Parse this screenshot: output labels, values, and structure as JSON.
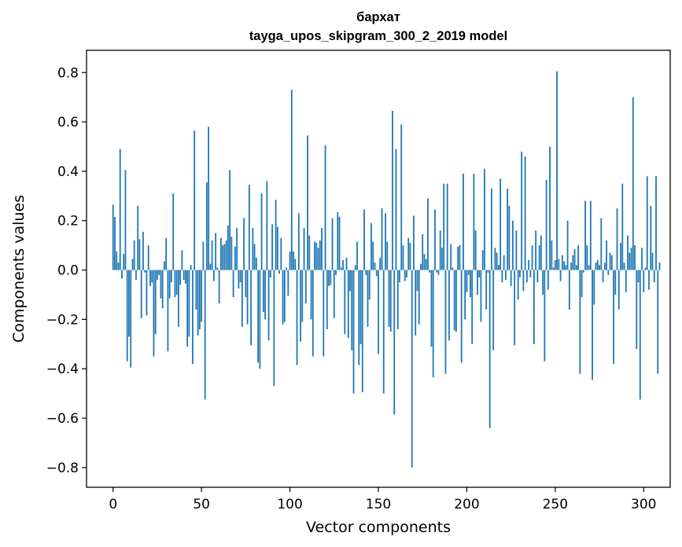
{
  "chart_data": {
    "type": "bar",
    "title": "бархат",
    "subtitle": "tayga_upos_skipgram_300_2_2019 model",
    "xlabel": "Vector components",
    "ylabel": "Components values",
    "xlim": [
      -15,
      315
    ],
    "ylim": [
      -0.88,
      0.89
    ],
    "xticks": [
      0,
      50,
      100,
      150,
      200,
      250,
      300
    ],
    "xtick_labels": [
      "0",
      "50",
      "100",
      "150",
      "200",
      "250",
      "300"
    ],
    "yticks": [
      0.8,
      0.6,
      0.4,
      0.2,
      0.0,
      -0.2,
      -0.4,
      -0.6,
      -0.8
    ],
    "ytick_labels": [
      "0.8",
      "0.6",
      "0.4",
      "0.2",
      "0.0",
      "−0.2",
      "−0.4",
      "−0.6",
      "−0.8"
    ],
    "bar_color": "#1f77b4",
    "grid": false,
    "values": [
      0.265,
      0.215,
      0.075,
      0.03,
      0.49,
      -0.035,
      0.065,
      0.405,
      -0.37,
      -0.27,
      -0.395,
      0.045,
      0.12,
      -0.04,
      0.26,
      0.125,
      -0.195,
      0.155,
      -0.01,
      -0.185,
      0.1,
      -0.065,
      -0.05,
      -0.35,
      -0.26,
      -0.04,
      -0.02,
      -0.115,
      -0.155,
      0.035,
      0.13,
      -0.33,
      -0.115,
      -0.05,
      0.31,
      -0.11,
      -0.1,
      -0.23,
      -0.06,
      0.08,
      -0.04,
      -0.055,
      -0.31,
      -0.27,
      0.02,
      -0.38,
      0.565,
      -0.16,
      -0.265,
      -0.24,
      -0.21,
      0.115,
      -0.525,
      0.355,
      0.58,
      0.025,
      0.12,
      -0.045,
      0.15,
      0.01,
      -0.135,
      0.13,
      0.1,
      0.105,
      0.12,
      0.18,
      0.405,
      0.135,
      -0.11,
      0.095,
      0.17,
      -0.075,
      -0.05,
      -0.23,
      0.21,
      -0.11,
      -0.22,
      0.345,
      -0.305,
      0.17,
      0.105,
      0.05,
      -0.375,
      -0.4,
      0.31,
      -0.17,
      -0.2,
      0.36,
      -0.285,
      -0.03,
      0.185,
      -0.47,
      0.285,
      0.175,
      -0.015,
      0.13,
      -0.22,
      -0.21,
      0.01,
      -0.105,
      0.075,
      0.73,
      0.075,
      0.045,
      -0.385,
      0.23,
      -0.29,
      -0.21,
      0.17,
      -0.135,
      0.545,
      0.14,
      -0.2,
      -0.35,
      0.115,
      0.11,
      0.09,
      0.12,
      0.17,
      -0.35,
      0.505,
      -0.24,
      -0.065,
      -0.06,
      0.21,
      -0.195,
      -0.02,
      0.235,
      0.215,
      0.01,
      0.04,
      -0.26,
      0.05,
      -0.275,
      -0.085,
      -0.325,
      -0.5,
      0.02,
      0.115,
      -0.385,
      -0.3,
      -0.495,
      0.245,
      -0.02,
      -0.23,
      -0.12,
      0.19,
      0.115,
      0.03,
      -0.025,
      -0.34,
      0.05,
      0.25,
      -0.5,
      0.23,
      0.115,
      -0.23,
      -0.25,
      0.645,
      -0.585,
      0.49,
      -0.24,
      -0.05,
      0.59,
      0.1,
      -0.045,
      -0.03,
      0.13,
      0.11,
      -0.8,
      0.22,
      -0.265,
      -0.085,
      -0.22,
      0.025,
      0.145,
      0.065,
      0.045,
      0.29,
      -0.01,
      -0.31,
      -0.435,
      0.245,
      -0.01,
      -0.02,
      0.16,
      0.09,
      0.35,
      -0.42,
      0.35,
      -0.285,
      0.105,
      0.01,
      -0.245,
      -0.25,
      0.095,
      0.1,
      -0.375,
      0.39,
      -0.2,
      -0.09,
      -0.02,
      -0.11,
      -0.3,
      0.39,
      0.16,
      -0.1,
      -0.03,
      -0.21,
      0.08,
      0.41,
      -0.16,
      -0.01,
      -0.64,
      0.33,
      -0.325,
      0.09,
      0.07,
      0.02,
      0.37,
      -0.05,
      0.06,
      -0.04,
      0.33,
      0.26,
      -0.065,
      0.2,
      -0.305,
      0.16,
      -0.12,
      -0.03,
      0.48,
      -0.085,
      0.46,
      -0.05,
      0.04,
      -0.03,
      0.1,
      -0.3,
      0.16,
      -0.05,
      0.1,
      0.14,
      -0.1,
      -0.37,
      0.365,
      -0.08,
      0.5,
      0.12,
      0.01,
      0.04,
      0.805,
      0.045,
      -0.045,
      0.06,
      0.035,
      0.02,
      0.2,
      -0.16,
      0.03,
      0.06,
      0.085,
      0.02,
      0.1,
      -0.42,
      -0.11,
      -0.01,
      0.28,
      0.1,
      0.02,
      0.28,
      -0.445,
      -0.14,
      0.03,
      0.04,
      0.02,
      0.21,
      -0.05,
      0.03,
      0.12,
      -0.02,
      0.07,
      0.06,
      -0.38,
      -0.1,
      0.25,
      -0.16,
      0.11,
      0.35,
      0.03,
      -0.09,
      0.14,
      0.07,
      0.09,
      0.7,
      0.1,
      -0.32,
      -0.05,
      -0.525,
      0.09,
      -0.09,
      0.01,
      0.38,
      -0.08,
      0.26,
      0.07,
      -0.05,
      0.38,
      -0.42,
      0.03
    ]
  }
}
